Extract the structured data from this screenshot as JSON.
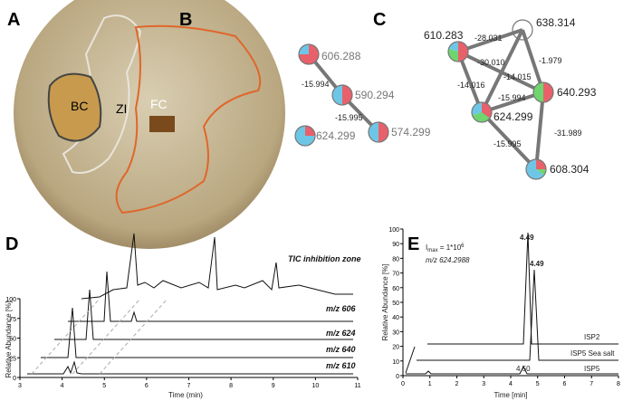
{
  "panel_a": {
    "label": "A",
    "regions": [
      "BC",
      "ZI",
      "FC"
    ]
  },
  "panel_b": {
    "label": "B",
    "nodes": [
      "606.288",
      "590.294",
      "574.299",
      "624.299"
    ],
    "edges": [
      "-15.994",
      "-15.995"
    ]
  },
  "panel_c": {
    "label": "C",
    "nodes": [
      "610.283",
      "638.314",
      "640.293",
      "624.299",
      "608.304"
    ],
    "edges": [
      "-28.031",
      "-30.010",
      "-14.015",
      "-1.979",
      "-14.016",
      "-15.994",
      "-31.989",
      "-15.995"
    ]
  },
  "panel_d": {
    "label": "D",
    "y_label": "Relative Abundance [%]",
    "x_label": "Time (min)",
    "xticks": [
      "3",
      "4",
      "5",
      "6",
      "7",
      "8",
      "9",
      "10",
      "11"
    ],
    "yticks": [
      "0",
      "25",
      "50",
      "75",
      "100"
    ],
    "traces": [
      "TIC inhibition zone",
      "m/z 606",
      "m/z 624",
      "m/z 640",
      "m/z 610"
    ]
  },
  "panel_e": {
    "label": "E",
    "y_label": "Relative Abundance [%]",
    "x_label": "Time [min]",
    "xticks": [
      "0",
      "1",
      "2",
      "3",
      "4",
      "5",
      "6",
      "7",
      "8"
    ],
    "yticks": [
      "0",
      "10",
      "20",
      "30",
      "40",
      "50",
      "60",
      "70",
      "80",
      "90",
      "100"
    ],
    "imax": [
      "I",
      "max",
      " = 1*10",
      "6"
    ],
    "mz": "m/z 624.2988",
    "peak_labels": [
      "4.49",
      "4.49",
      "4.50"
    ],
    "traces": [
      "ISP2",
      "ISP5 Sea salt",
      "ISP5"
    ]
  }
}
